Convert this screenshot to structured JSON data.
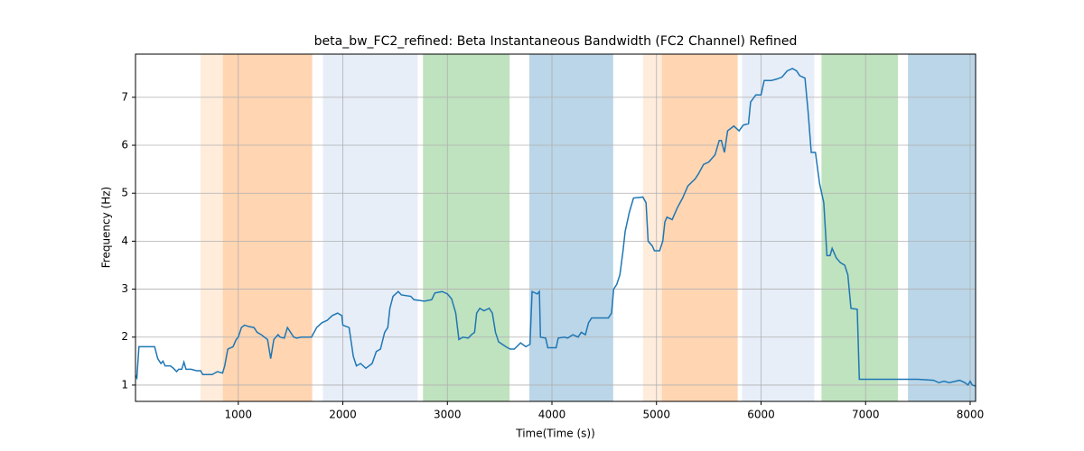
{
  "chart_data": {
    "type": "line",
    "title": "beta_bw_FC2_refined: Beta Instantaneous Bandwidth (FC2 Channel) Refined",
    "x_label": "Time(Time (s))",
    "y_label": "Frequency (Hz)",
    "xlim": [
      17,
      8052
    ],
    "ylim": [
      0.66,
      7.9
    ],
    "xticks": [
      1000,
      2000,
      3000,
      4000,
      5000,
      6000,
      7000,
      8000
    ],
    "yticks": [
      1,
      2,
      3,
      4,
      5,
      6,
      7
    ],
    "grid": true,
    "color": "#1f77b4",
    "spans": [
      {
        "start": 638,
        "end": 1707,
        "color": "rgba(255,127,14,0.15)"
      },
      {
        "start": 853,
        "end": 1707,
        "color": "rgba(255,127,14,0.2)"
      },
      {
        "start": 1810,
        "end": 2716,
        "color": "rgba(174,199,232,0.3)"
      },
      {
        "start": 2767,
        "end": 3595,
        "color": "rgba(44,160,44,0.3)"
      },
      {
        "start": 3784,
        "end": 4586,
        "color": "rgba(31,119,180,0.3)"
      },
      {
        "start": 4871,
        "end": 5776,
        "color": "rgba(255,127,14,0.15)"
      },
      {
        "start": 5052,
        "end": 5776,
        "color": "rgba(255,127,14,0.2)"
      },
      {
        "start": 5819,
        "end": 6509,
        "color": "rgba(174,199,232,0.3)"
      },
      {
        "start": 6578,
        "end": 7310,
        "color": "rgba(44,160,44,0.3)"
      },
      {
        "start": 7405,
        "end": 8052,
        "color": "rgba(31,119,180,0.3)"
      }
    ],
    "x": [
      17,
      30,
      50,
      100,
      200,
      230,
      260,
      280,
      300,
      350,
      380,
      410,
      430,
      460,
      480,
      500,
      550,
      600,
      640,
      660,
      750,
      800,
      850,
      870,
      900,
      950,
      980,
      1000,
      1030,
      1060,
      1100,
      1150,
      1180,
      1220,
      1250,
      1280,
      1310,
      1340,
      1380,
      1400,
      1440,
      1470,
      1500,
      1530,
      1560,
      1600,
      1700,
      1750,
      1800,
      1850,
      1900,
      1950,
      1990,
      2000,
      2060,
      2080,
      2100,
      2130,
      2170,
      2220,
      2280,
      2320,
      2360,
      2400,
      2430,
      2450,
      2480,
      2530,
      2560,
      2650,
      2680,
      2780,
      2850,
      2880,
      2950,
      3000,
      3040,
      3080,
      3110,
      3150,
      3200,
      3230,
      3260,
      3280,
      3310,
      3350,
      3400,
      3430,
      3460,
      3490,
      3560,
      3600,
      3640,
      3700,
      3750,
      3790,
      3810,
      3860,
      3880,
      3890,
      3940,
      3960,
      4040,
      4060,
      4120,
      4150,
      4200,
      4250,
      4280,
      4320,
      4350,
      4380,
      4480,
      4540,
      4570,
      4590,
      4620,
      4650,
      4680,
      4700,
      4740,
      4780,
      4870,
      4900,
      4920,
      4960,
      4980,
      5030,
      5060,
      5080,
      5100,
      5150,
      5200,
      5250,
      5300,
      5370,
      5400,
      5450,
      5500,
      5560,
      5600,
      5620,
      5650,
      5680,
      5740,
      5790,
      5830,
      5880,
      5900,
      5950,
      6000,
      6030,
      6100,
      6150,
      6200,
      6250,
      6300,
      6340,
      6370,
      6420,
      6450,
      6480,
      6520,
      6560,
      6600,
      6630,
      6660,
      6680,
      6720,
      6760,
      6800,
      6830,
      6860,
      6920,
      6940,
      7000,
      7200,
      7500,
      7650,
      7700,
      7750,
      7800,
      7900,
      7950,
      7980,
      8000,
      8020,
      8050
    ],
    "values": [
      1.2,
      1.15,
      1.8,
      1.8,
      1.8,
      1.55,
      1.45,
      1.5,
      1.4,
      1.4,
      1.35,
      1.28,
      1.33,
      1.33,
      1.48,
      1.33,
      1.33,
      1.3,
      1.3,
      1.22,
      1.22,
      1.28,
      1.25,
      1.4,
      1.75,
      1.8,
      1.95,
      2.0,
      2.2,
      2.25,
      2.22,
      2.2,
      2.1,
      2.05,
      2.0,
      1.95,
      1.55,
      1.95,
      2.05,
      2.0,
      1.98,
      2.2,
      2.1,
      2.0,
      1.98,
      2.0,
      2.0,
      2.2,
      2.3,
      2.35,
      2.45,
      2.5,
      2.45,
      2.25,
      2.2,
      1.9,
      1.6,
      1.4,
      1.45,
      1.35,
      1.45,
      1.7,
      1.75,
      2.1,
      2.2,
      2.6,
      2.85,
      2.95,
      2.88,
      2.85,
      2.78,
      2.75,
      2.78,
      2.92,
      2.95,
      2.9,
      2.8,
      2.5,
      1.95,
      2.0,
      1.98,
      2.05,
      2.1,
      2.5,
      2.6,
      2.55,
      2.6,
      2.5,
      2.1,
      1.9,
      1.8,
      1.75,
      1.75,
      1.88,
      1.8,
      1.85,
      2.95,
      2.9,
      2.95,
      2.0,
      1.98,
      1.78,
      1.78,
      1.98,
      2.0,
      1.98,
      2.05,
      2.0,
      2.1,
      2.05,
      2.3,
      2.4,
      2.4,
      2.4,
      2.5,
      3.0,
      3.1,
      3.3,
      3.8,
      4.2,
      4.6,
      4.9,
      4.92,
      4.8,
      4.0,
      3.9,
      3.8,
      3.8,
      4.0,
      4.4,
      4.5,
      4.45,
      4.7,
      4.9,
      5.15,
      5.3,
      5.4,
      5.6,
      5.65,
      5.8,
      6.1,
      6.1,
      5.85,
      6.3,
      6.4,
      6.3,
      6.42,
      6.45,
      6.9,
      7.05,
      7.05,
      7.35,
      7.35,
      7.38,
      7.42,
      7.55,
      7.6,
      7.55,
      7.45,
      7.4,
      6.7,
      5.85,
      5.85,
      5.2,
      4.8,
      3.7,
      3.7,
      3.85,
      3.65,
      3.55,
      3.5,
      3.3,
      2.6,
      2.58,
      1.12,
      1.12,
      1.12,
      1.12,
      1.1,
      1.05,
      1.08,
      1.05,
      1.1,
      1.05,
      1.0,
      1.08,
      1.0,
      0.98
    ]
  }
}
